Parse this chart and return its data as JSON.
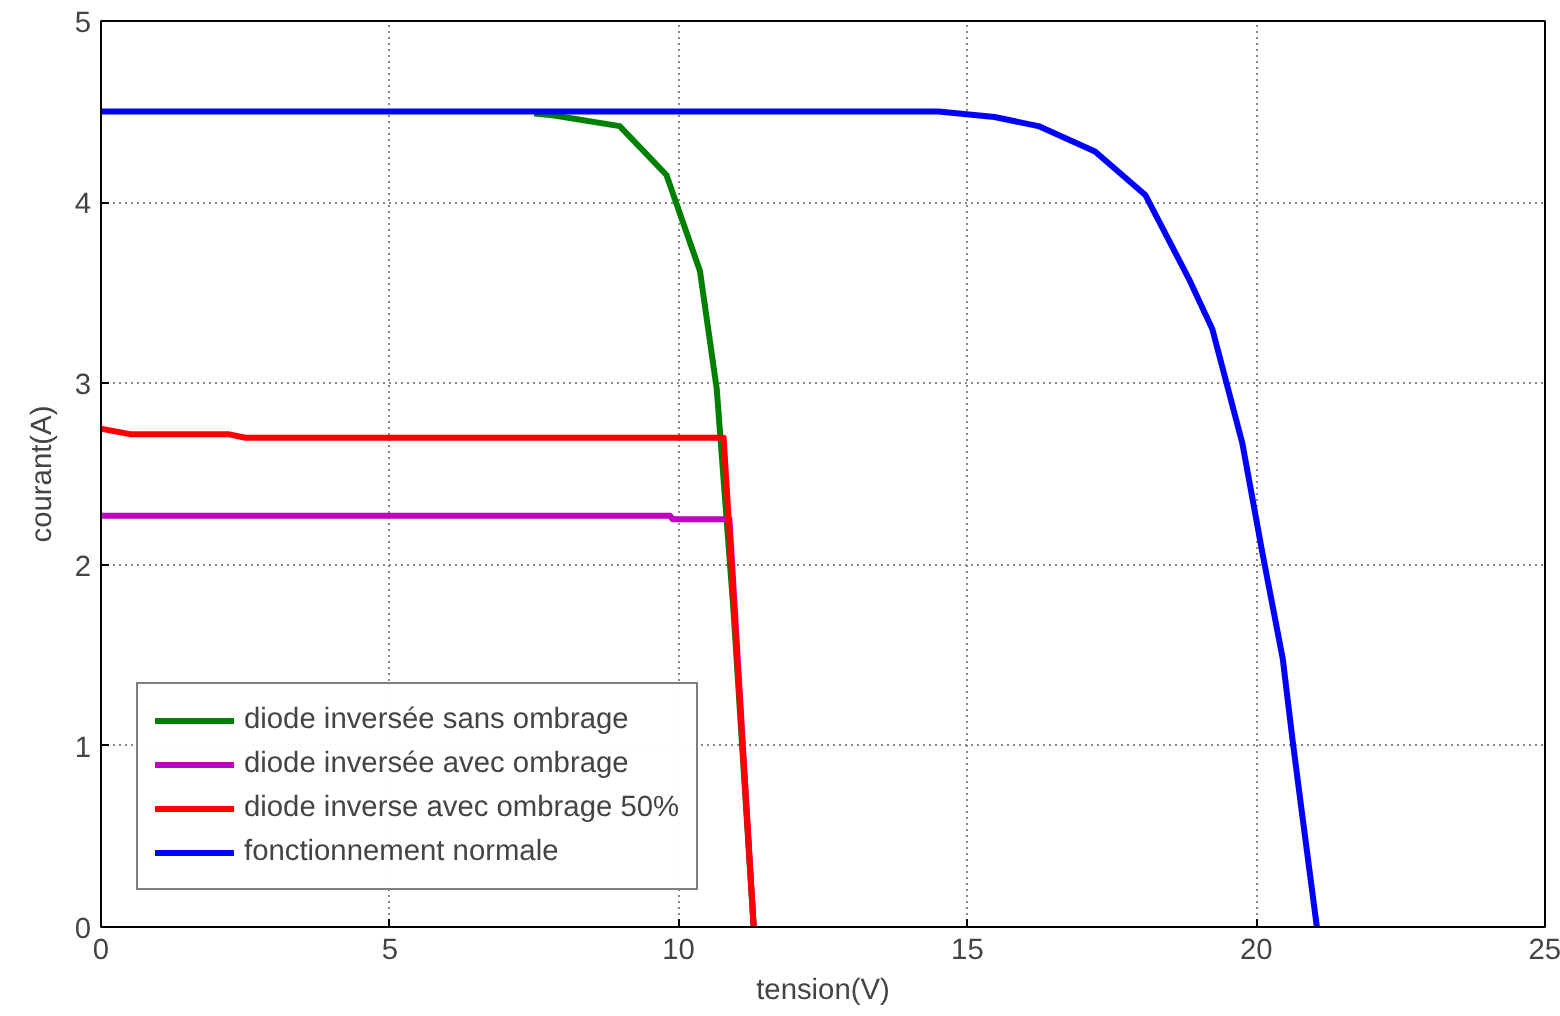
{
  "chart_data": {
    "type": "line",
    "xlabel": "tension(V)",
    "ylabel": "courant(A)",
    "xlim": [
      0,
      25
    ],
    "ylim": [
      0,
      5
    ],
    "xticks": [
      0,
      5,
      10,
      15,
      20,
      25
    ],
    "yticks": [
      0,
      1,
      2,
      3,
      4,
      5
    ],
    "grid": true,
    "legend": "bottom left",
    "line_style": "solid",
    "marker": "none",
    "series": [
      {
        "name": "diode inversée sans ombrage",
        "color": "#008000",
        "x": [
          7.5,
          7.82,
          8.98,
          9.79,
          10.37,
          10.66,
          10.95,
          11.3
        ],
        "values": [
          4.49,
          4.48,
          4.42,
          4.15,
          3.62,
          2.97,
          1.75,
          0
        ]
      },
      {
        "name": "diode inversée avec ombrage",
        "color": "#bf00bf",
        "x": [
          0,
          9.85,
          9.9,
          10.88,
          11.3
        ],
        "values": [
          2.27,
          2.27,
          2.25,
          2.25,
          0
        ]
      },
      {
        "name": "diode inverse avec ombrage 50%",
        "color": "#ff0000",
        "x": [
          0,
          0.5,
          2.2,
          2.5,
          10.78,
          11.3
        ],
        "values": [
          2.75,
          2.72,
          2.72,
          2.7,
          2.7,
          0
        ]
      },
      {
        "name": "fonctionnement normale",
        "color": "#0000ff",
        "x": [
          0,
          14.5,
          15.47,
          16.23,
          17.21,
          18.08,
          18.83,
          19.24,
          19.76,
          20.11,
          20.46,
          20.63,
          20.8,
          21.05
        ],
        "values": [
          4.5,
          4.5,
          4.47,
          4.42,
          4.28,
          4.04,
          3.58,
          3.3,
          2.67,
          2.06,
          1.48,
          1.03,
          0.61,
          0
        ]
      }
    ]
  }
}
